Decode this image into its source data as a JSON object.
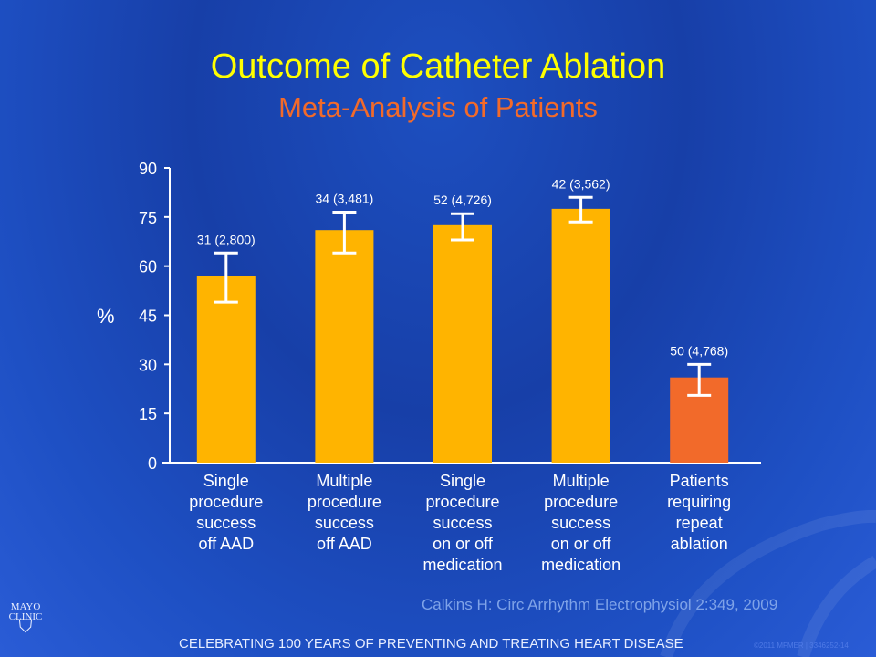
{
  "title": "Outcome of Catheter Ablation",
  "subtitle": "Meta-Analysis of Patients",
  "chart_data": {
    "type": "bar",
    "ylabel": "%",
    "ylim": [
      0,
      90
    ],
    "yticks": [
      0,
      15,
      30,
      45,
      60,
      75,
      90
    ],
    "categories": [
      "Single\nprocedure\nsuccess\noff AAD",
      "Multiple\nprocedure\nsuccess\noff AAD",
      "Single\nprocedure\nsuccess\non or off\nmedication",
      "Multiple\nprocedure\nsuccess\non or off\nmedication",
      "Patients\nrequiring\nrepeat\nablation"
    ],
    "values": [
      57,
      71,
      72.5,
      77.5,
      26
    ],
    "error_low": [
      49,
      64,
      68,
      73.5,
      20.5
    ],
    "error_high": [
      64,
      76.5,
      76,
      81,
      30
    ],
    "data_labels": [
      "31 (2,800)",
      "34 (3,481)",
      "52 (4,726)",
      "42 (3,562)",
      "50 (4,768)"
    ],
    "colors": [
      "#ffb400",
      "#ffb400",
      "#ffb400",
      "#ffb400",
      "#f26a2a"
    ]
  },
  "citation": "Calkins H: Circ Arrhythm Electrophysiol 2:349, 2009",
  "footer": "CELEBRATING 100 YEARS OF PREVENTING AND TREATING HEART DISEASE",
  "copyright": "©2011 MFMER | 3346252-14",
  "logo": "MAYO CLINIC"
}
